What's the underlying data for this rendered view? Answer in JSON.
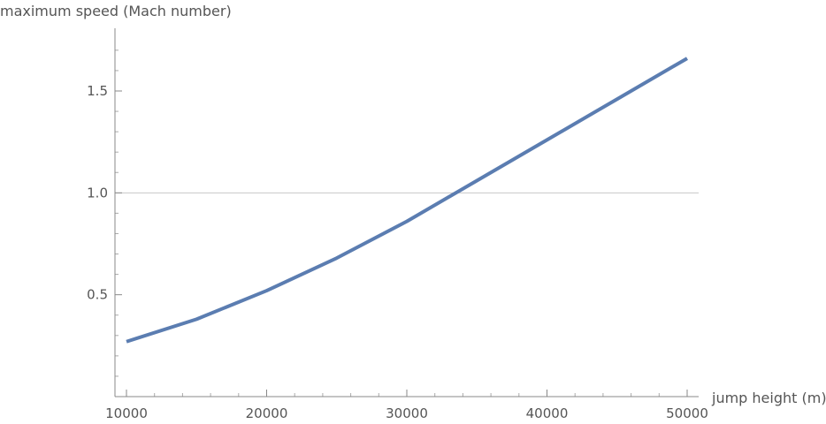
{
  "chart_data": {
    "type": "line",
    "title": "",
    "xlabel": "jump height (m)",
    "ylabel": "maximum speed (Mach number)",
    "xlim": [
      9000,
      51000
    ],
    "ylim": [
      0,
      1.8
    ],
    "x_ticks": [
      10000,
      20000,
      30000,
      40000,
      50000
    ],
    "x_tick_labels": [
      "10000",
      "20000",
      "30000",
      "40000",
      "50000"
    ],
    "y_ticks": [
      0.5,
      1.0,
      1.5
    ],
    "y_tick_labels": [
      "0.5",
      "1.0",
      "1.5"
    ],
    "reference_line": {
      "y": 1.0
    },
    "grid": false,
    "series": [
      {
        "color": "#5B7DB1",
        "x": [
          10000,
          15000,
          20000,
          25000,
          30000,
          35000,
          40000,
          45000,
          50000
        ],
        "y": [
          0.27,
          0.38,
          0.52,
          0.68,
          0.86,
          1.06,
          1.26,
          1.46,
          1.66
        ]
      }
    ]
  }
}
